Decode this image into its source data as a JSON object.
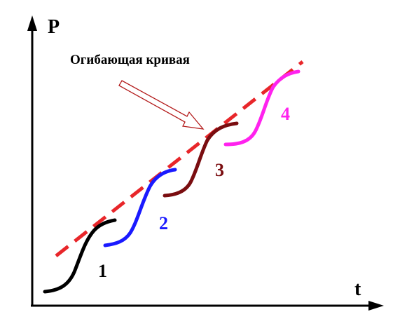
{
  "axes": {
    "y_label": "P",
    "x_label": "t"
  },
  "envelope": {
    "label": "Огибающая кривая",
    "color": "#e8262a"
  },
  "curves": [
    {
      "label": "1",
      "color": "#000000"
    },
    {
      "label": "2",
      "color": "#1a1aff"
    },
    {
      "label": "3",
      "color": "#7a0d10"
    },
    {
      "label": "4",
      "color": "#ff22ee"
    }
  ],
  "arrow": {
    "color": "#b31a1a"
  },
  "axis_color": "#000000"
}
